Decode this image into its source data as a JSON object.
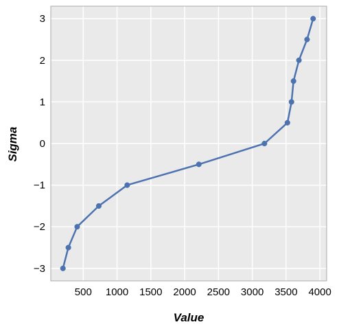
{
  "chart_data": {
    "type": "line",
    "title": "",
    "xlabel": "Value",
    "ylabel": "Sigma",
    "xlim": [
      20,
      4100
    ],
    "ylim": [
      -3.3,
      3.3
    ],
    "xticks": [
      500,
      1000,
      1500,
      2000,
      2500,
      3000,
      3500,
      4000
    ],
    "xtick_labels": [
      "500",
      "1000",
      "1500",
      "2000",
      "2500",
      "3000",
      "3500",
      "4000"
    ],
    "yticks": [
      3,
      2,
      1,
      0,
      -1,
      -2,
      -3
    ],
    "ytick_labels": [
      "3",
      "2",
      "1",
      "0",
      "−1",
      "−2",
      "−3"
    ],
    "grid": true,
    "legend": "none",
    "series": [
      {
        "color": "#4c72b0",
        "marker": "circle",
        "points": [
          {
            "x": 200,
            "y": -3
          },
          {
            "x": 280,
            "y": -2.5
          },
          {
            "x": 410,
            "y": -2
          },
          {
            "x": 730,
            "y": -1.5
          },
          {
            "x": 1150,
            "y": -1
          },
          {
            "x": 2210,
            "y": -0.5
          },
          {
            "x": 3180,
            "y": 0
          },
          {
            "x": 3520,
            "y": 0.5
          },
          {
            "x": 3580,
            "y": 1
          },
          {
            "x": 3610,
            "y": 1.5
          },
          {
            "x": 3690,
            "y": 2
          },
          {
            "x": 3810,
            "y": 2.5
          },
          {
            "x": 3900,
            "y": 3
          }
        ]
      }
    ],
    "colors": {
      "plot_background": "#eaeaea",
      "grid": "#ffffff",
      "frame": "#aaaaaa"
    }
  }
}
